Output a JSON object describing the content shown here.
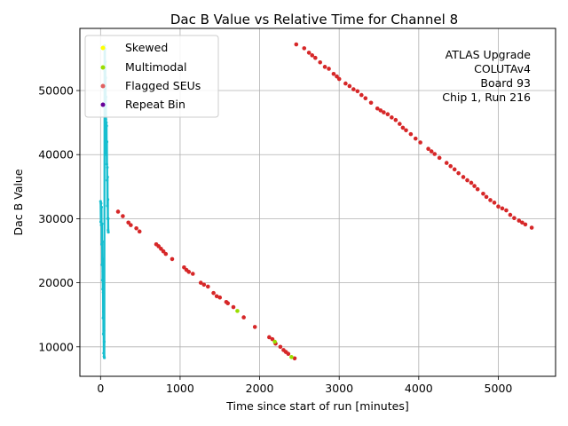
{
  "chart_data": {
    "type": "scatter",
    "title": "Dac B Value vs Relative Time for Channel 8",
    "xlabel": "Time since start of run [minutes]",
    "ylabel": "Dac B Value",
    "xlim": [
      -260,
      5720
    ],
    "ylim": [
      5400,
      59700
    ],
    "xticks": [
      0,
      1000,
      2000,
      3000,
      4000,
      5000
    ],
    "yticks": [
      10000,
      20000,
      30000,
      40000,
      50000
    ],
    "grid": true,
    "legend_position": "top-left",
    "legend": [
      {
        "name": "Skewed",
        "color": "#ffff00"
      },
      {
        "name": "Multimodal",
        "color": "#99dd00"
      },
      {
        "name": "Flagged SEUs",
        "color": "#e06060"
      },
      {
        "name": "Repeat Bin",
        "color": "#660099"
      }
    ],
    "annotation_lines": [
      "ATLAS Upgrade",
      "COLUTAv4",
      "Board 93",
      "Chip 1, Run 216"
    ],
    "main_series_color": "#17becf",
    "main_series": [
      {
        "x": 0,
        "y": 32700
      },
      {
        "x": 3,
        "y": 29500
      },
      {
        "x": 6,
        "y": 32400
      },
      {
        "x": 9,
        "y": 29000
      },
      {
        "x": 12,
        "y": 31800
      },
      {
        "x": 15,
        "y": 26000
      },
      {
        "x": 18,
        "y": 29200
      },
      {
        "x": 20,
        "y": 22800
      },
      {
        "x": 22,
        "y": 26400
      },
      {
        "x": 24,
        "y": 20400
      },
      {
        "x": 26,
        "y": 23700
      },
      {
        "x": 28,
        "y": 19000
      },
      {
        "x": 30,
        "y": 21800
      },
      {
        "x": 32,
        "y": 14500
      },
      {
        "x": 34,
        "y": 18500
      },
      {
        "x": 36,
        "y": 12000
      },
      {
        "x": 38,
        "y": 15500
      },
      {
        "x": 40,
        "y": 9000
      },
      {
        "x": 42,
        "y": 12500
      },
      {
        "x": 44,
        "y": 8500
      },
      {
        "x": 46,
        "y": 10800
      },
      {
        "x": 48,
        "y": 8300
      },
      {
        "x": 50,
        "y": 57000
      },
      {
        "x": 53,
        "y": 53000
      },
      {
        "x": 56,
        "y": 56500
      },
      {
        "x": 58,
        "y": 50000
      },
      {
        "x": 60,
        "y": 54500
      },
      {
        "x": 62,
        "y": 47500
      },
      {
        "x": 64,
        "y": 52000
      },
      {
        "x": 66,
        "y": 45500
      },
      {
        "x": 68,
        "y": 49000
      },
      {
        "x": 70,
        "y": 42000
      },
      {
        "x": 72,
        "y": 45000
      },
      {
        "x": 74,
        "y": 40000
      },
      {
        "x": 76,
        "y": 44500
      },
      {
        "x": 78,
        "y": 38500
      },
      {
        "x": 80,
        "y": 42000
      },
      {
        "x": 82,
        "y": 36000
      },
      {
        "x": 84,
        "y": 38000
      },
      {
        "x": 86,
        "y": 32000
      },
      {
        "x": 88,
        "y": 36500
      },
      {
        "x": 90,
        "y": 30000
      },
      {
        "x": 92,
        "y": 33000
      },
      {
        "x": 94,
        "y": 28200
      },
      {
        "x": 96,
        "y": 30000
      },
      {
        "x": 98,
        "y": 27900
      }
    ],
    "scatter_color": "#d62728",
    "scatter_series": [
      {
        "x": 220,
        "y": 31100
      },
      {
        "x": 280,
        "y": 30400
      },
      {
        "x": 350,
        "y": 29400
      },
      {
        "x": 380,
        "y": 29000
      },
      {
        "x": 450,
        "y": 28500
      },
      {
        "x": 490,
        "y": 28000
      },
      {
        "x": 700,
        "y": 26000
      },
      {
        "x": 730,
        "y": 25700
      },
      {
        "x": 760,
        "y": 25300
      },
      {
        "x": 790,
        "y": 24900
      },
      {
        "x": 820,
        "y": 24500
      },
      {
        "x": 900,
        "y": 23700
      },
      {
        "x": 1050,
        "y": 22400
      },
      {
        "x": 1080,
        "y": 22000
      },
      {
        "x": 1110,
        "y": 21700
      },
      {
        "x": 1160,
        "y": 21400
      },
      {
        "x": 1260,
        "y": 20000
      },
      {
        "x": 1300,
        "y": 19700
      },
      {
        "x": 1350,
        "y": 19400
      },
      {
        "x": 1420,
        "y": 18400
      },
      {
        "x": 1460,
        "y": 17900
      },
      {
        "x": 1500,
        "y": 17700
      },
      {
        "x": 1580,
        "y": 17000
      },
      {
        "x": 1600,
        "y": 16800
      },
      {
        "x": 1670,
        "y": 16200
      },
      {
        "x": 1800,
        "y": 14600
      },
      {
        "x": 1940,
        "y": 13100
      },
      {
        "x": 2120,
        "y": 11500
      },
      {
        "x": 2160,
        "y": 11200
      },
      {
        "x": 2200,
        "y": 10500
      },
      {
        "x": 2260,
        "y": 10000
      },
      {
        "x": 2300,
        "y": 9500
      },
      {
        "x": 2330,
        "y": 9200
      },
      {
        "x": 2360,
        "y": 8900
      },
      {
        "x": 2440,
        "y": 8200
      },
      {
        "x": 2460,
        "y": 57200
      },
      {
        "x": 2560,
        "y": 56600
      },
      {
        "x": 2620,
        "y": 55900
      },
      {
        "x": 2660,
        "y": 55500
      },
      {
        "x": 2700,
        "y": 55100
      },
      {
        "x": 2760,
        "y": 54400
      },
      {
        "x": 2820,
        "y": 53700
      },
      {
        "x": 2870,
        "y": 53400
      },
      {
        "x": 2930,
        "y": 52600
      },
      {
        "x": 2970,
        "y": 52200
      },
      {
        "x": 3000,
        "y": 51800
      },
      {
        "x": 3080,
        "y": 51100
      },
      {
        "x": 3130,
        "y": 50700
      },
      {
        "x": 3180,
        "y": 50200
      },
      {
        "x": 3230,
        "y": 49900
      },
      {
        "x": 3280,
        "y": 49300
      },
      {
        "x": 3330,
        "y": 48800
      },
      {
        "x": 3400,
        "y": 48100
      },
      {
        "x": 3480,
        "y": 47200
      },
      {
        "x": 3520,
        "y": 46900
      },
      {
        "x": 3560,
        "y": 46600
      },
      {
        "x": 3610,
        "y": 46300
      },
      {
        "x": 3660,
        "y": 45800
      },
      {
        "x": 3710,
        "y": 45400
      },
      {
        "x": 3760,
        "y": 44800
      },
      {
        "x": 3800,
        "y": 44200
      },
      {
        "x": 3840,
        "y": 43800
      },
      {
        "x": 3900,
        "y": 43200
      },
      {
        "x": 3960,
        "y": 42500
      },
      {
        "x": 4020,
        "y": 41900
      },
      {
        "x": 4120,
        "y": 40900
      },
      {
        "x": 4160,
        "y": 40500
      },
      {
        "x": 4200,
        "y": 40100
      },
      {
        "x": 4260,
        "y": 39500
      },
      {
        "x": 4350,
        "y": 38700
      },
      {
        "x": 4400,
        "y": 38200
      },
      {
        "x": 4450,
        "y": 37700
      },
      {
        "x": 4500,
        "y": 37100
      },
      {
        "x": 4560,
        "y": 36500
      },
      {
        "x": 4610,
        "y": 36000
      },
      {
        "x": 4660,
        "y": 35600
      },
      {
        "x": 4700,
        "y": 35100
      },
      {
        "x": 4740,
        "y": 34600
      },
      {
        "x": 4810,
        "y": 33900
      },
      {
        "x": 4850,
        "y": 33400
      },
      {
        "x": 4900,
        "y": 32900
      },
      {
        "x": 4950,
        "y": 32500
      },
      {
        "x": 5000,
        "y": 31900
      },
      {
        "x": 5050,
        "y": 31600
      },
      {
        "x": 5100,
        "y": 31300
      },
      {
        "x": 5150,
        "y": 30600
      },
      {
        "x": 5200,
        "y": 30100
      },
      {
        "x": 5260,
        "y": 29700
      },
      {
        "x": 5300,
        "y": 29400
      },
      {
        "x": 5340,
        "y": 29100
      },
      {
        "x": 5420,
        "y": 28600
      }
    ],
    "multimodal_points": [
      {
        "x": 1720,
        "y": 15600
      },
      {
        "x": 2190,
        "y": 10800
      },
      {
        "x": 2400,
        "y": 8400
      }
    ]
  }
}
